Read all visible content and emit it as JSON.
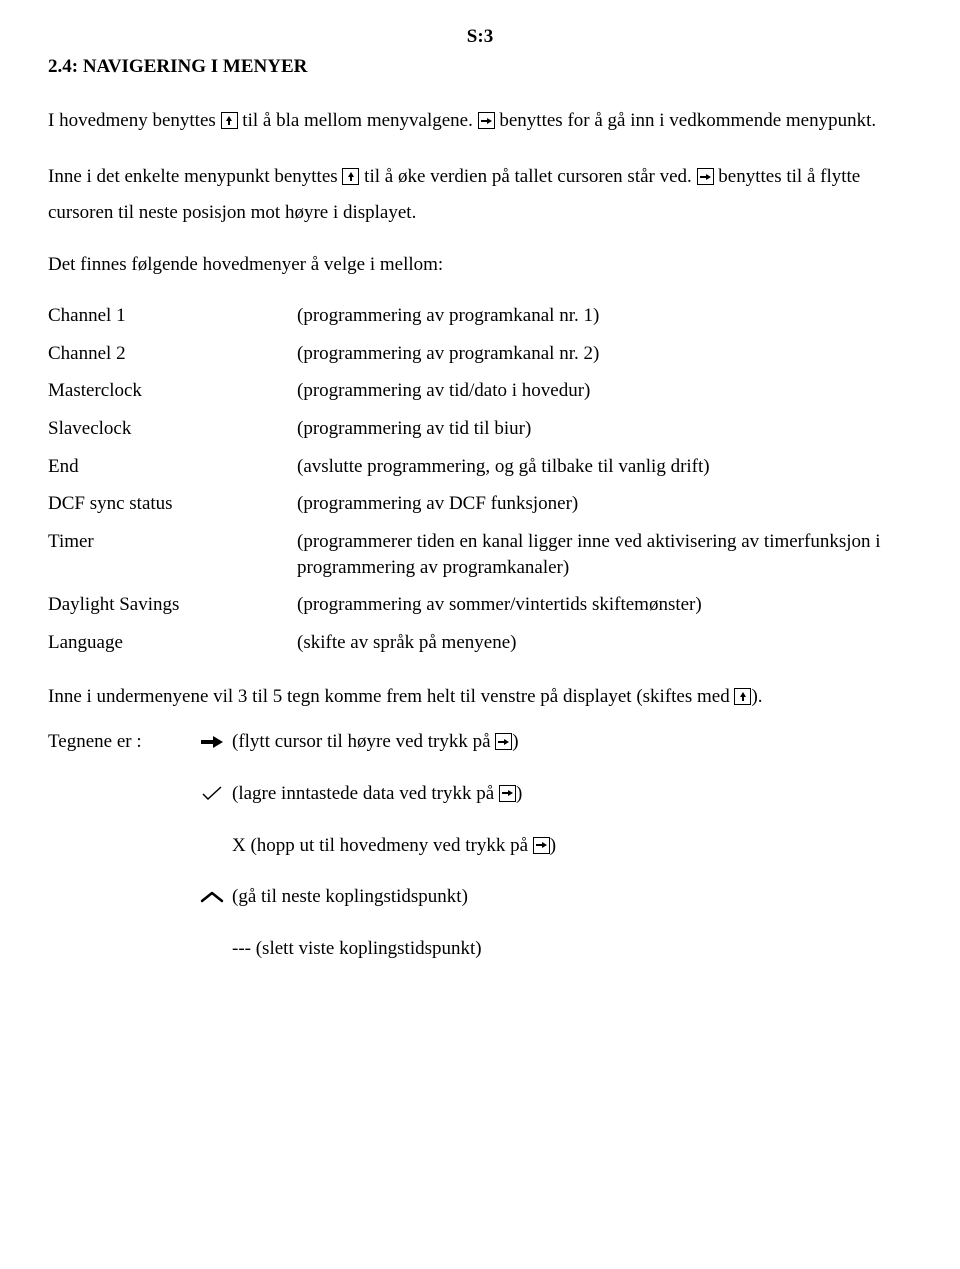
{
  "page_marker": "S:3",
  "title": "2.4: NAVIGERING I MENYER",
  "intro": {
    "p1a": "I hovedmeny benyttes ",
    "p1b": " til å bla mellom menyvalgene. ",
    "p1c": " benyttes for å gå inn i vedkommende menypunkt.",
    "p2a": "Inne i det enkelte menypunkt benyttes ",
    "p2b": " til å øke verdien på tallet cursoren står ved. ",
    "p2c": " benyttes til å flytte cursoren til neste posisjon mot høyre i displayet.",
    "p3": "Det finnes følgende hovedmenyer å velge i mellom:"
  },
  "menus": [
    {
      "term": "Channel 1",
      "desc": "(programmering av programkanal nr. 1)"
    },
    {
      "term": "Channel 2",
      "desc": "(programmering av programkanal nr. 2)"
    },
    {
      "term": "Masterclock",
      "desc": "(programmering av tid/dato i hovedur)"
    },
    {
      "term": "Slaveclock",
      "desc": "(programmering av tid til biur)"
    },
    {
      "term": "End",
      "desc": "(avslutte programmering, og gå tilbake til vanlig drift)"
    },
    {
      "term": "DCF sync status",
      "desc": "(programmering av DCF funksjoner)"
    },
    {
      "term": "Timer",
      "desc": "(programmerer tiden en kanal ligger inne ved aktivisering av timerfunksjon i programmering av programkanaler)"
    },
    {
      "term": "Daylight Savings",
      "desc": "(programmering av sommer/vintertids skiftemønster)"
    },
    {
      "term": "Language",
      "desc": "(skifte av språk på menyene)"
    }
  ],
  "submenu_note_a": "Inne i undermenyene vil 3 til 5 tegn komme frem helt til venstre på displayet (skiftes med ",
  "submenu_note_b": ").",
  "signs_label": "Tegnene er : ",
  "signs": {
    "s1a": "(flytt cursor til høyre ved trykk på ",
    "s1b": ")",
    "s2a": "(lagre inntastede data ved trykk på ",
    "s2b": ")",
    "s3a": "X (hopp ut til hovedmeny ved trykk på ",
    "s3b": ")",
    "s4": "(gå til neste koplingstidspunkt)",
    "s5": "--- (slett viste koplingstidspunkt)"
  }
}
